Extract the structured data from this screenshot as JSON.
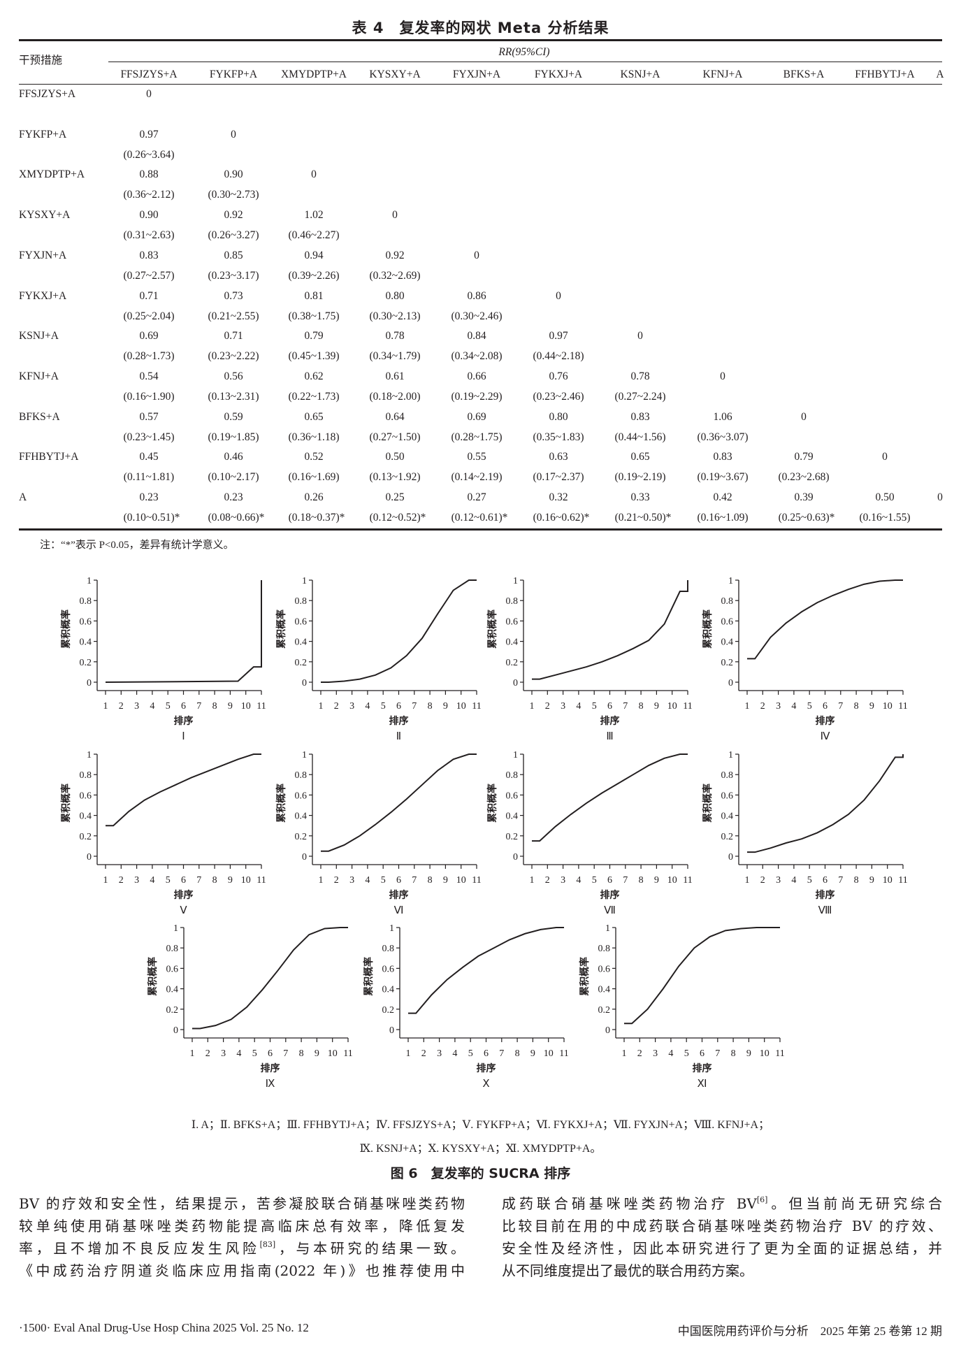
{
  "table": {
    "title": "表 4　复发率的网状 Meta 分析结果",
    "row_header": "干预措施",
    "group_header": "RR(95%CI)",
    "columns": [
      "FFSJZYS+A",
      "FYKFP+A",
      "XMYDPTP+A",
      "KYSXY+A",
      "FYXJN+A",
      "FYKXJ+A",
      "KSNJ+A",
      "KFNJ+A",
      "BFKS+A",
      "FFHBYTJ+A",
      "A"
    ],
    "rows": [
      {
        "label": "FFSJZYS+A",
        "values": [
          "0"
        ],
        "ci": []
      },
      {
        "label": "FYKFP+A",
        "values": [
          "0.97",
          "0"
        ],
        "ci": [
          "(0.26~3.64)"
        ]
      },
      {
        "label": "XMYDPTP+A",
        "values": [
          "0.88",
          "0.90",
          "0"
        ],
        "ci": [
          "(0.36~2.12)",
          "(0.30~2.73)"
        ]
      },
      {
        "label": "KYSXY+A",
        "values": [
          "0.90",
          "0.92",
          "1.02",
          "0"
        ],
        "ci": [
          "(0.31~2.63)",
          "(0.26~3.27)",
          "(0.46~2.27)"
        ]
      },
      {
        "label": "FYXJN+A",
        "values": [
          "0.83",
          "0.85",
          "0.94",
          "0.92",
          "0"
        ],
        "ci": [
          "(0.27~2.57)",
          "(0.23~3.17)",
          "(0.39~2.26)",
          "(0.32~2.69)"
        ]
      },
      {
        "label": "FYKXJ+A",
        "values": [
          "0.71",
          "0.73",
          "0.81",
          "0.80",
          "0.86",
          "0"
        ],
        "ci": [
          "(0.25~2.04)",
          "(0.21~2.55)",
          "(0.38~1.75)",
          "(0.30~2.13)",
          "(0.30~2.46)"
        ]
      },
      {
        "label": "KSNJ+A",
        "values": [
          "0.69",
          "0.71",
          "0.79",
          "0.78",
          "0.84",
          "0.97",
          "0"
        ],
        "ci": [
          "(0.28~1.73)",
          "(0.23~2.22)",
          "(0.45~1.39)",
          "(0.34~1.79)",
          "(0.34~2.08)",
          "(0.44~2.18)"
        ]
      },
      {
        "label": "KFNJ+A",
        "values": [
          "0.54",
          "0.56",
          "0.62",
          "0.61",
          "0.66",
          "0.76",
          "0.78",
          "0"
        ],
        "ci": [
          "(0.16~1.90)",
          "(0.13~2.31)",
          "(0.22~1.73)",
          "(0.18~2.00)",
          "(0.19~2.29)",
          "(0.23~2.46)",
          "(0.27~2.24)"
        ]
      },
      {
        "label": "BFKS+A",
        "values": [
          "0.57",
          "0.59",
          "0.65",
          "0.64",
          "0.69",
          "0.80",
          "0.83",
          "1.06",
          "0"
        ],
        "ci": [
          "(0.23~1.45)",
          "(0.19~1.85)",
          "(0.36~1.18)",
          "(0.27~1.50)",
          "(0.28~1.75)",
          "(0.35~1.83)",
          "(0.44~1.56)",
          "(0.36~3.07)"
        ]
      },
      {
        "label": "FFHBYTJ+A",
        "values": [
          "0.45",
          "0.46",
          "0.52",
          "0.50",
          "0.55",
          "0.63",
          "0.65",
          "0.83",
          "0.79",
          "0"
        ],
        "ci": [
          "(0.11~1.81)",
          "(0.10~2.17)",
          "(0.16~1.69)",
          "(0.13~1.92)",
          "(0.14~2.19)",
          "(0.17~2.37)",
          "(0.19~2.19)",
          "(0.19~3.67)",
          "(0.23~2.68)"
        ]
      },
      {
        "label": "A",
        "values": [
          "0.23",
          "0.23",
          "0.26",
          "0.25",
          "0.27",
          "0.32",
          "0.33",
          "0.42",
          "0.39",
          "0.50",
          "0"
        ],
        "ci": [
          "(0.10~0.51)*",
          "(0.08~0.66)*",
          "(0.18~0.37)*",
          "(0.12~0.52)*",
          "(0.12~0.61)*",
          "(0.16~0.62)*",
          "(0.21~0.50)*",
          "(0.16~1.09)",
          "(0.25~0.63)*",
          "(0.16~1.55)"
        ]
      }
    ],
    "note": "注：“*”表示 P<0.05，差异有统计学意义。"
  },
  "chart_data": {
    "type": "line",
    "title": "图 6　复发率的 SUCRA 排序",
    "xlabel": "排序",
    "ylabel": "累积概率",
    "xticks": [
      "1",
      "2",
      "3",
      "4",
      "5",
      "6",
      "7",
      "8",
      "9",
      "10",
      "11"
    ],
    "yticks": [
      "0",
      "0.2",
      "0.4",
      "0.6",
      "0.8",
      "1"
    ],
    "xlim": [
      1,
      11
    ],
    "ylim": [
      0,
      1
    ],
    "panels": [
      {
        "label": "Ⅰ",
        "points": [
          [
            1,
            0
          ],
          [
            9.5,
            0.01
          ],
          [
            10.5,
            0.15
          ],
          [
            11,
            0.15
          ],
          [
            11,
            1
          ]
        ]
      },
      {
        "label": "Ⅱ",
        "points": [
          [
            1,
            0
          ],
          [
            1.5,
            0
          ],
          [
            2.5,
            0.01
          ],
          [
            3.5,
            0.03
          ],
          [
            4.5,
            0.07
          ],
          [
            5.5,
            0.14
          ],
          [
            6.5,
            0.26
          ],
          [
            7.5,
            0.43
          ],
          [
            8.5,
            0.67
          ],
          [
            9.5,
            0.9
          ],
          [
            10.5,
            1
          ],
          [
            11,
            1
          ]
        ]
      },
      {
        "label": "Ⅲ",
        "points": [
          [
            1,
            0.03
          ],
          [
            1.5,
            0.03
          ],
          [
            2.5,
            0.07
          ],
          [
            3.5,
            0.11
          ],
          [
            4.5,
            0.15
          ],
          [
            5.5,
            0.2
          ],
          [
            6.5,
            0.26
          ],
          [
            7.5,
            0.33
          ],
          [
            8.5,
            0.41
          ],
          [
            9.5,
            0.57
          ],
          [
            10.5,
            0.89
          ],
          [
            11,
            0.89
          ],
          [
            11,
            1
          ]
        ]
      },
      {
        "label": "Ⅳ",
        "points": [
          [
            1,
            0.23
          ],
          [
            1.5,
            0.23
          ],
          [
            2.5,
            0.44
          ],
          [
            3.5,
            0.58
          ],
          [
            4.5,
            0.69
          ],
          [
            5.5,
            0.78
          ],
          [
            6.5,
            0.85
          ],
          [
            7.5,
            0.91
          ],
          [
            8.5,
            0.96
          ],
          [
            9.5,
            0.99
          ],
          [
            10.5,
            1
          ],
          [
            11,
            1
          ]
        ]
      },
      {
        "label": "Ⅴ",
        "points": [
          [
            1,
            0.3
          ],
          [
            1.5,
            0.3
          ],
          [
            2.5,
            0.44
          ],
          [
            3.5,
            0.55
          ],
          [
            4.5,
            0.63
          ],
          [
            5.5,
            0.7
          ],
          [
            6.5,
            0.77
          ],
          [
            7.5,
            0.83
          ],
          [
            8.5,
            0.89
          ],
          [
            9.5,
            0.95
          ],
          [
            10.5,
            1
          ],
          [
            11,
            1
          ]
        ]
      },
      {
        "label": "Ⅵ",
        "points": [
          [
            1,
            0.05
          ],
          [
            1.5,
            0.05
          ],
          [
            2.5,
            0.11
          ],
          [
            3.5,
            0.2
          ],
          [
            4.5,
            0.31
          ],
          [
            5.5,
            0.43
          ],
          [
            6.5,
            0.56
          ],
          [
            7.5,
            0.7
          ],
          [
            8.5,
            0.84
          ],
          [
            9.5,
            0.95
          ],
          [
            10.5,
            1
          ],
          [
            11,
            1
          ]
        ]
      },
      {
        "label": "Ⅶ",
        "points": [
          [
            1,
            0.15
          ],
          [
            1.5,
            0.15
          ],
          [
            2.5,
            0.29
          ],
          [
            3.5,
            0.41
          ],
          [
            4.5,
            0.52
          ],
          [
            5.5,
            0.62
          ],
          [
            6.5,
            0.71
          ],
          [
            7.5,
            0.8
          ],
          [
            8.5,
            0.89
          ],
          [
            9.5,
            0.96
          ],
          [
            10.5,
            1
          ],
          [
            11,
            1
          ]
        ]
      },
      {
        "label": "Ⅷ",
        "points": [
          [
            1,
            0.04
          ],
          [
            1.5,
            0.04
          ],
          [
            2.5,
            0.08
          ],
          [
            3.5,
            0.13
          ],
          [
            4.5,
            0.17
          ],
          [
            5.5,
            0.23
          ],
          [
            6.5,
            0.31
          ],
          [
            7.5,
            0.41
          ],
          [
            8.5,
            0.55
          ],
          [
            9.5,
            0.74
          ],
          [
            10.5,
            0.97
          ],
          [
            11,
            0.97
          ],
          [
            11,
            1
          ]
        ]
      },
      {
        "label": "Ⅸ",
        "points": [
          [
            1,
            0.01
          ],
          [
            1.5,
            0.01
          ],
          [
            2.5,
            0.04
          ],
          [
            3.5,
            0.1
          ],
          [
            4.5,
            0.22
          ],
          [
            5.5,
            0.39
          ],
          [
            6.5,
            0.58
          ],
          [
            7.5,
            0.78
          ],
          [
            8.5,
            0.93
          ],
          [
            9.5,
            0.99
          ],
          [
            10.5,
            1
          ],
          [
            11,
            1
          ]
        ]
      },
      {
        "label": "Ⅹ",
        "points": [
          [
            1,
            0.16
          ],
          [
            1.5,
            0.16
          ],
          [
            2.5,
            0.34
          ],
          [
            3.5,
            0.49
          ],
          [
            4.5,
            0.61
          ],
          [
            5.5,
            0.72
          ],
          [
            6.5,
            0.8
          ],
          [
            7.5,
            0.88
          ],
          [
            8.5,
            0.94
          ],
          [
            9.5,
            0.98
          ],
          [
            10.5,
            1
          ],
          [
            11,
            1
          ]
        ]
      },
      {
        "label": "Ⅺ",
        "points": [
          [
            1,
            0.06
          ],
          [
            1.5,
            0.06
          ],
          [
            2.5,
            0.2
          ],
          [
            3.5,
            0.4
          ],
          [
            4.5,
            0.62
          ],
          [
            5.5,
            0.8
          ],
          [
            6.5,
            0.91
          ],
          [
            7.5,
            0.97
          ],
          [
            8.5,
            0.99
          ],
          [
            9.5,
            1
          ],
          [
            10.5,
            1
          ],
          [
            11,
            1
          ]
        ]
      }
    ],
    "legend_lines": [
      "Ⅰ. A；Ⅱ. BFKS+A；Ⅲ. FFHBYTJ+A；Ⅳ. FFSJZYS+A；Ⅴ. FYKFP+A；Ⅵ. FYKXJ+A；Ⅶ. FYXJN+A；Ⅷ. KFNJ+A；",
      "Ⅸ. KSNJ+A；Ⅹ. KYSXY+A；Ⅺ. XMYDPTP+A。"
    ]
  },
  "body": {
    "left": [
      {
        "text": "BV 的疗效和安全性，结果提示，苦参凝胶联合硝基咪唑类药物"
      },
      {
        "text": "较单纯使用硝基咪唑类药物能提高临床总有效率，降低复发"
      },
      {
        "text": "率，且不增加不良反应发生风险",
        "sup": "[83]",
        "after": "，与本研究的结果一致。"
      },
      {
        "text": "《中成药治疗阴道炎临床应用指南(2022 年)》也推荐使用中"
      }
    ],
    "right": [
      {
        "text": "成药联合硝基咪唑类药物治疗 BV",
        "sup": "[6]",
        "after": "。但当前尚无研究综合"
      },
      {
        "text": "比较目前在用的中成药联合硝基咪唑类药物治疗 BV 的疗效、"
      },
      {
        "text": "安全性及经济性，因此本研究进行了更为全面的证据总结，并"
      },
      {
        "text": "从不同维度提出了最优的联合用药方案。"
      }
    ]
  },
  "footer": {
    "left": "·1500·  Eval Anal Drug-Use Hosp China 2025 Vol. 25 No. 12",
    "right": "中国医院用药评价与分析　2025 年第 25 卷第 12 期"
  }
}
